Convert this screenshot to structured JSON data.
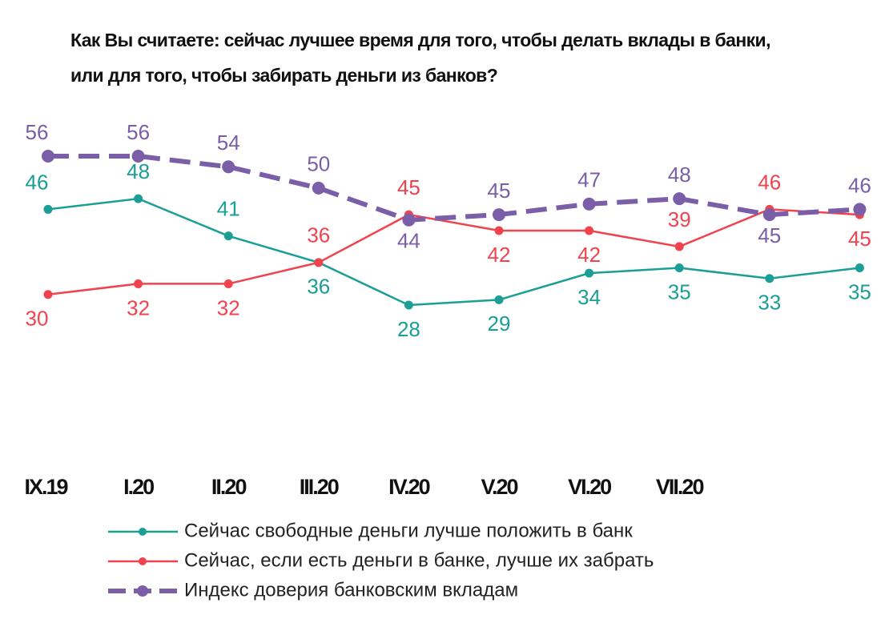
{
  "chart_data": {
    "type": "line",
    "title": "Как Вы считаете: сейчас лучшее время для того, чтобы делать вклады в банки, или для того, чтобы забирать деньги из банков?",
    "categories": [
      "IX.19",
      "I.20",
      "II.20",
      "III.20",
      "IV.20",
      "V.20",
      "VI.20",
      "VII.20",
      null,
      null
    ],
    "series": [
      {
        "name": "Сейчас свободные деньги лучше положить в банк",
        "color": "#1a9e96",
        "values": [
          46,
          48,
          41,
          36,
          28,
          29,
          34,
          35,
          33,
          35
        ]
      },
      {
        "name": "Сейчас, если есть деньги в банке, лучше их забрать",
        "color": "#f0434e",
        "values": [
          30,
          32,
          32,
          36,
          45,
          42,
          42,
          39,
          46,
          45
        ]
      },
      {
        "name": "Индекс доверия банковским вкладам",
        "color": "#7a5ea8",
        "dashed": true,
        "values": [
          56,
          56,
          54,
          50,
          44,
          45,
          47,
          48,
          45,
          46
        ]
      }
    ]
  }
}
